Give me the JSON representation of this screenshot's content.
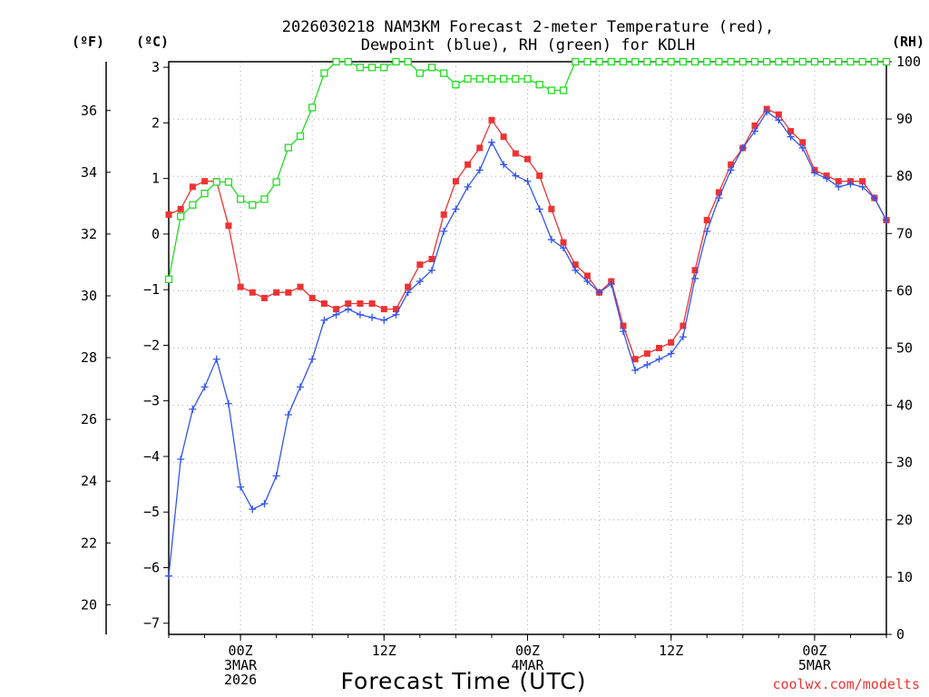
{
  "chart_data": {
    "type": "line",
    "title_line1": "2026030218 NAM3KM Forecast 2-meter Temperature (red),",
    "title_line2": "Dewpoint (blue), RH (green) for KDLH",
    "xlabel": "Forecast Time (UTC)",
    "credit": "coolwx.com/modelts",
    "colors": {
      "temperature": "#ee3333",
      "dewpoint": "#3355ee",
      "rh": "#22dd22",
      "grid": "#aaaaaa",
      "axis": "#000000"
    },
    "axes": {
      "celsius": {
        "unit_label": "(ºC)",
        "range": [
          -7.2,
          3.1
        ],
        "ticks": [
          "3",
          "2",
          "1",
          "0",
          "-1",
          "-2",
          "-3",
          "-4",
          "-5",
          "-6",
          "-7"
        ]
      },
      "fahrenheit": {
        "unit_label": "(ºF)",
        "ticks": [
          "36",
          "34",
          "32",
          "30",
          "28",
          "26",
          "24",
          "22",
          "20"
        ]
      },
      "rh": {
        "unit_label": "(RH)",
        "range": [
          0,
          100
        ],
        "ticks": [
          "100",
          "90",
          "80",
          "70",
          "60",
          "50",
          "40",
          "30",
          "20",
          "10",
          "0"
        ]
      }
    },
    "x_range_hours": [
      -6,
      54
    ],
    "x_ticks": [
      {
        "hour": 0,
        "line1": "00Z",
        "line2": "3MAR",
        "line3": "2026"
      },
      {
        "hour": 12,
        "line1": "12Z",
        "line2": "",
        "line3": ""
      },
      {
        "hour": 24,
        "line1": "00Z",
        "line2": "4MAR",
        "line3": ""
      },
      {
        "hour": 36,
        "line1": "12Z",
        "line2": "",
        "line3": ""
      },
      {
        "hour": 48,
        "line1": "00Z",
        "line2": "5MAR",
        "line3": ""
      }
    ],
    "series": [
      {
        "name": "2-meter Temperature",
        "units": "C",
        "color_key": "temperature",
        "marker": "filled-square",
        "x": [
          -6,
          -5,
          -4,
          -3,
          -2,
          -1,
          0,
          1,
          2,
          3,
          4,
          5,
          6,
          7,
          8,
          9,
          10,
          11,
          12,
          13,
          14,
          15,
          16,
          17,
          18,
          19,
          20,
          21,
          22,
          23,
          24,
          25,
          26,
          27,
          28,
          29,
          30,
          31,
          32,
          33,
          34,
          35,
          36,
          37,
          38,
          39,
          40,
          41,
          42,
          43,
          44,
          45,
          46,
          47,
          48,
          49,
          50,
          51,
          52,
          53,
          54
        ],
        "values": [
          0.35,
          0.45,
          0.85,
          0.95,
          0.95,
          0.15,
          -0.95,
          -1.05,
          -1.15,
          -1.05,
          -1.05,
          -0.95,
          -1.15,
          -1.25,
          -1.35,
          -1.25,
          -1.25,
          -1.25,
          -1.35,
          -1.35,
          -0.95,
          -0.55,
          -0.45,
          0.35,
          0.95,
          1.25,
          1.55,
          2.05,
          1.75,
          1.45,
          1.35,
          1.05,
          0.45,
          -0.15,
          -0.55,
          -0.75,
          -1.05,
          -0.85,
          -1.65,
          -2.25,
          -2.15,
          -2.05,
          -1.95,
          -1.65,
          -0.65,
          0.25,
          0.75,
          1.25,
          1.55,
          1.95,
          2.25,
          2.15,
          1.85,
          1.65,
          1.15,
          1.05,
          0.95,
          0.95,
          0.95,
          0.65,
          0.25
        ]
      },
      {
        "name": "Dewpoint",
        "units": "C",
        "color_key": "dewpoint",
        "marker": "plus",
        "x": [
          -6,
          -5,
          -4,
          -3,
          -2,
          -1,
          0,
          1,
          2,
          3,
          4,
          5,
          6,
          7,
          8,
          9,
          10,
          11,
          12,
          13,
          14,
          15,
          16,
          17,
          18,
          19,
          20,
          21,
          22,
          23,
          24,
          25,
          26,
          27,
          28,
          29,
          30,
          31,
          32,
          33,
          34,
          35,
          36,
          37,
          38,
          39,
          40,
          41,
          42,
          43,
          44,
          45,
          46,
          47,
          48,
          49,
          50,
          51,
          52,
          53,
          54
        ],
        "values": [
          -6.15,
          -4.05,
          -3.15,
          -2.75,
          -2.25,
          -3.05,
          -4.55,
          -4.95,
          -4.85,
          -4.35,
          -3.25,
          -2.75,
          -2.25,
          -1.55,
          -1.45,
          -1.35,
          -1.45,
          -1.5,
          -1.55,
          -1.45,
          -1.05,
          -0.85,
          -0.65,
          0.05,
          0.45,
          0.85,
          1.15,
          1.65,
          1.25,
          1.05,
          0.95,
          0.45,
          -0.1,
          -0.25,
          -0.65,
          -0.85,
          -1.05,
          -0.9,
          -1.75,
          -2.45,
          -2.35,
          -2.25,
          -2.15,
          -1.85,
          -0.8,
          0.05,
          0.65,
          1.15,
          1.55,
          1.85,
          2.2,
          2.05,
          1.75,
          1.55,
          1.1,
          1.0,
          0.85,
          0.9,
          0.85,
          0.65,
          0.25
        ]
      },
      {
        "name": "RH",
        "units": "%",
        "color_key": "rh",
        "marker": "open-square",
        "x": [
          -6,
          -5,
          -4,
          -3,
          -2,
          -1,
          0,
          1,
          2,
          3,
          4,
          5,
          6,
          7,
          8,
          9,
          10,
          11,
          12,
          13,
          14,
          15,
          16,
          17,
          18,
          19,
          20,
          21,
          22,
          23,
          24,
          25,
          26,
          27,
          28,
          29,
          30,
          31,
          32,
          33,
          34,
          35,
          36,
          37,
          38,
          39,
          40,
          41,
          42,
          43,
          44,
          45,
          46,
          47,
          48,
          49,
          50,
          51,
          52,
          53,
          54
        ],
        "values": [
          62,
          73,
          75,
          77,
          79,
          79,
          76,
          75,
          76,
          79,
          85,
          87,
          92,
          98,
          100,
          100,
          99,
          99,
          99,
          100,
          100,
          98,
          99,
          98,
          96,
          97,
          97,
          97,
          97,
          97,
          97,
          96,
          95,
          95,
          100,
          100,
          100,
          100,
          100,
          100,
          100,
          100,
          100,
          100,
          100,
          100,
          100,
          100,
          100,
          100,
          100,
          100,
          100,
          100,
          100,
          100,
          100,
          100,
          100,
          100,
          100
        ]
      }
    ]
  }
}
